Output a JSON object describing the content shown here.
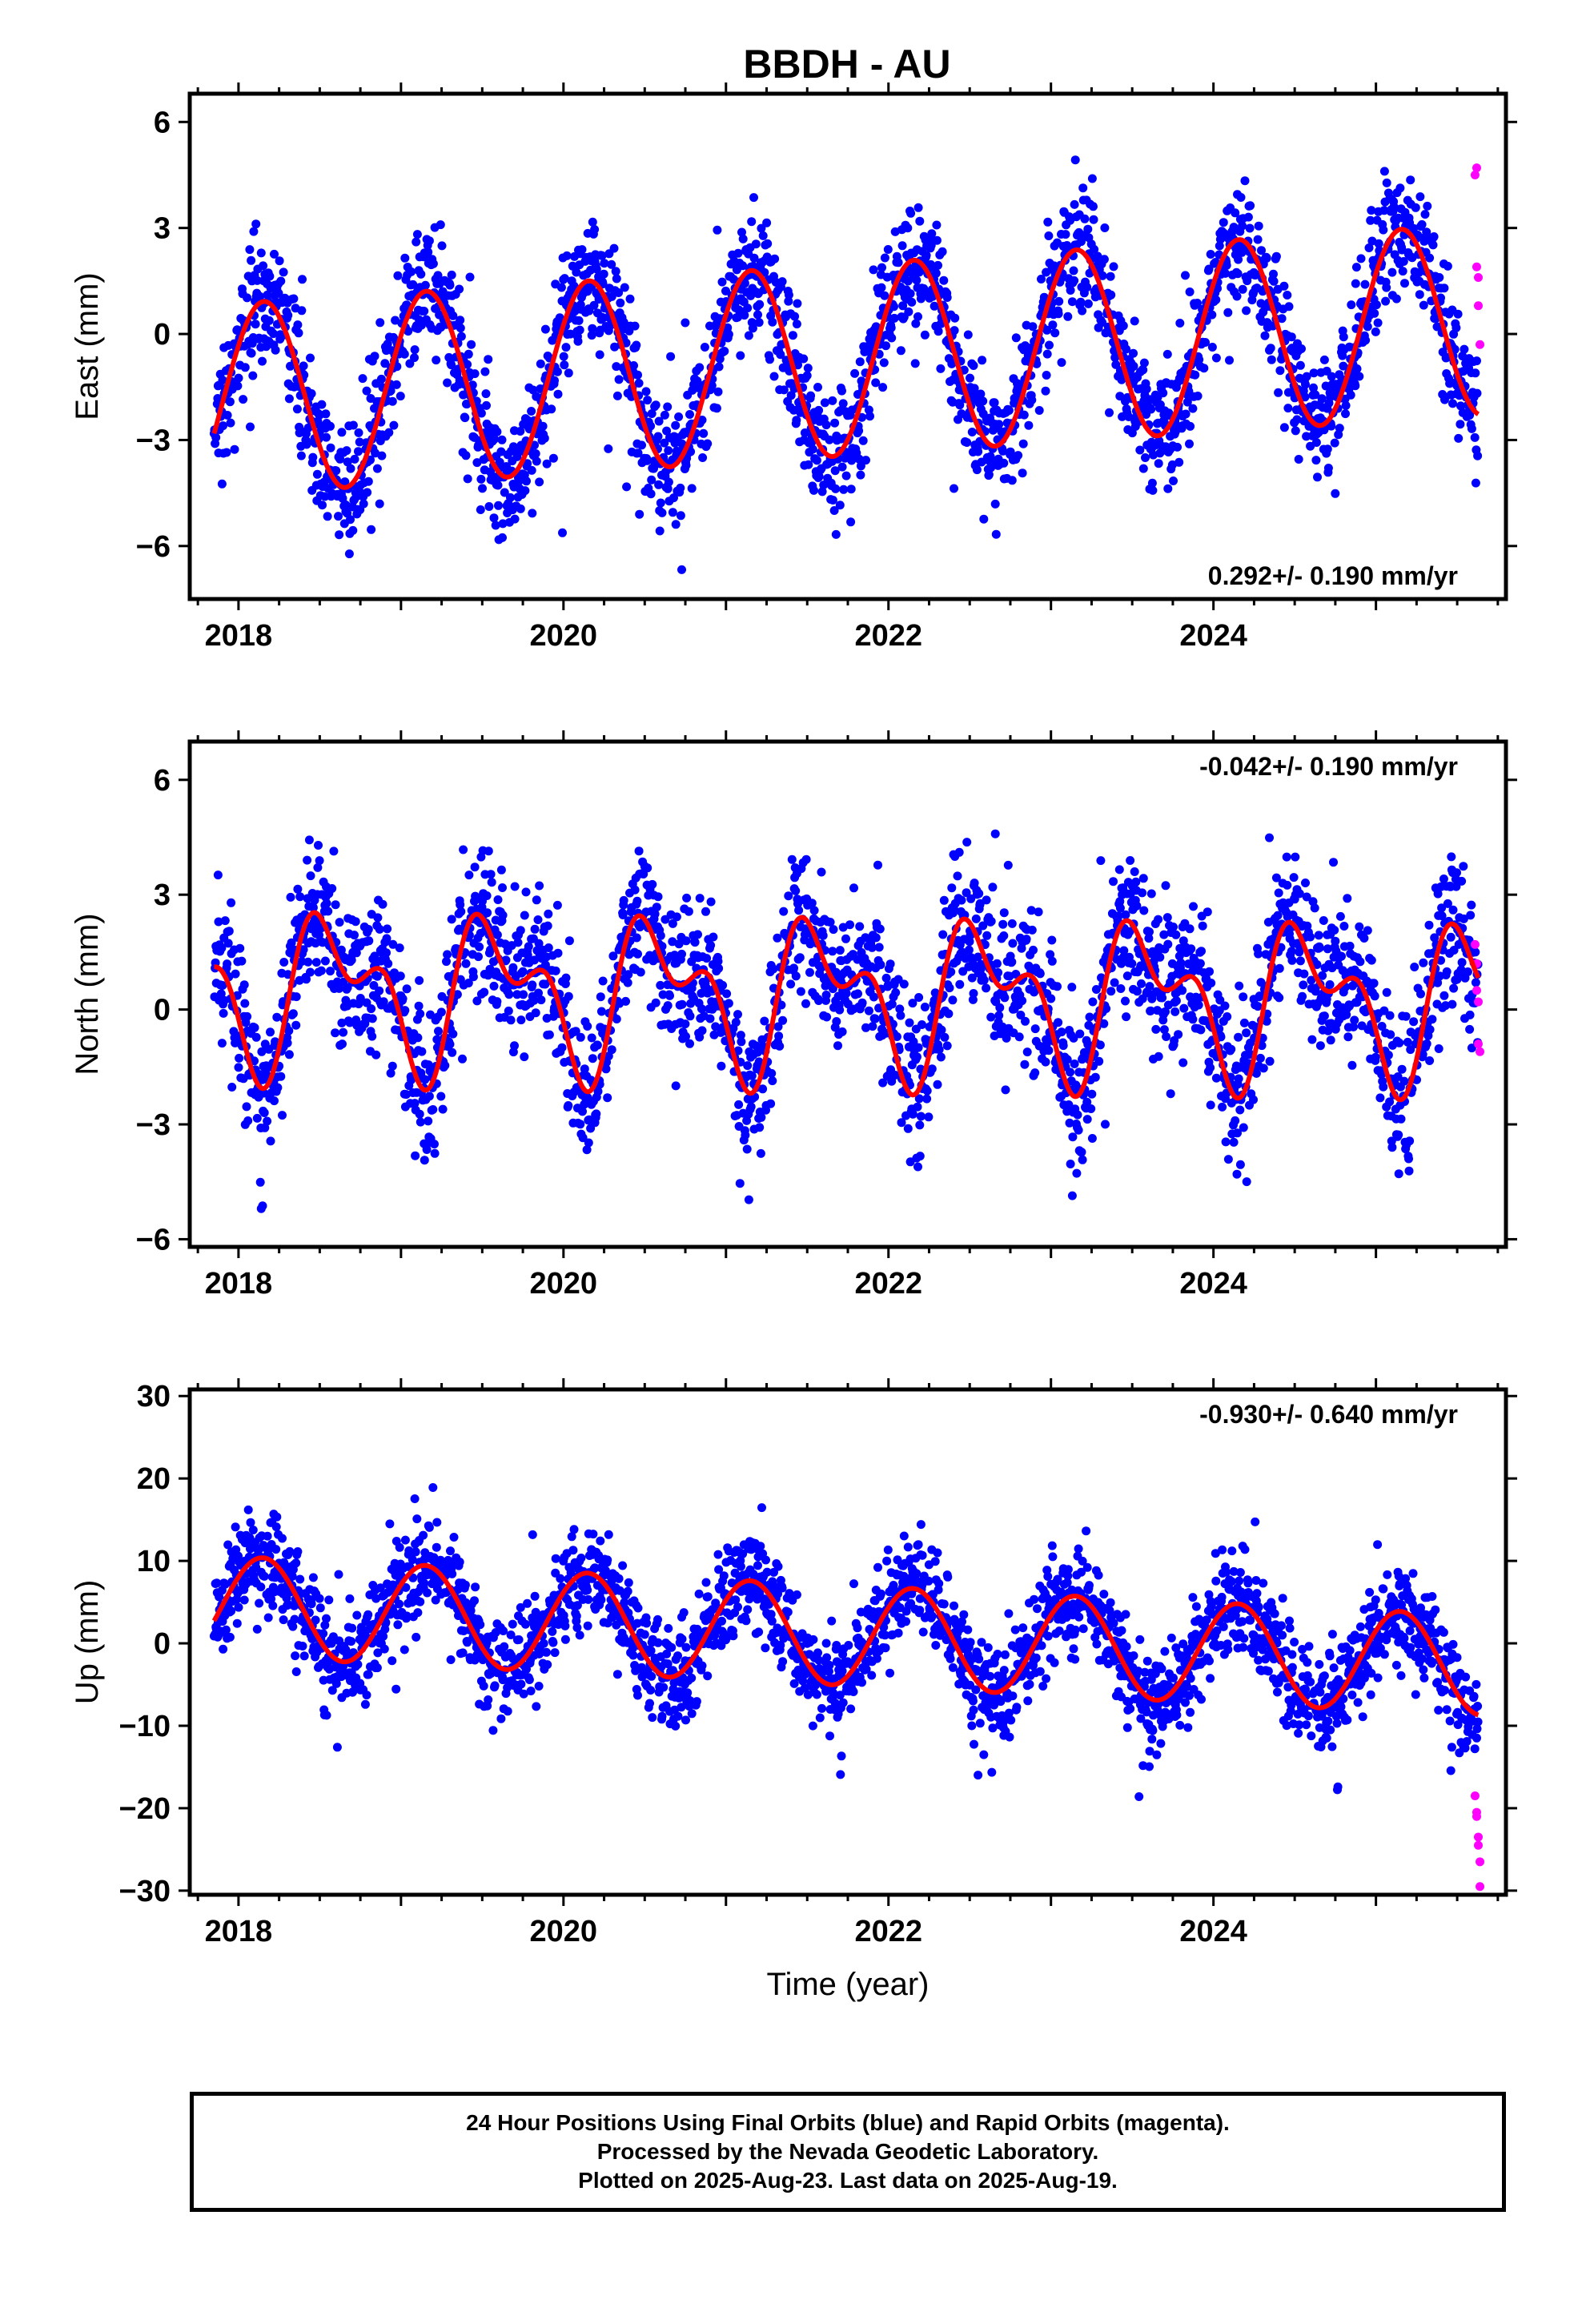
{
  "title": "BBDH - AU",
  "footer": {
    "line1": "24 Hour Positions Using Final Orbits (blue) and Rapid Orbits (magenta).",
    "line2": "Processed by the Nevada Geodetic Laboratory.",
    "line3": "Plotted on 2025-Aug-23. Last data on 2025-Aug-19."
  },
  "colors": {
    "final": "#0000ff",
    "rapid": "#ff00ff",
    "model": "#ff0000",
    "frame": "#000000"
  },
  "chart_data": [
    {
      "type": "scatter",
      "ylabel": "East (mm)",
      "xlabel": "",
      "rate_label": "0.292+/- 0.190 mm/yr",
      "rate_position": "bottom-right",
      "xlim": [
        2017.7,
        2025.8
      ],
      "ylim": [
        -7.5,
        6.8
      ],
      "xticks": [
        2018,
        2020,
        2022,
        2024
      ],
      "yticks": [
        -6,
        -3,
        0,
        3,
        6
      ],
      "ytick_labels": [
        "−6",
        "−3",
        "0",
        "3",
        "6"
      ],
      "data_start": 2017.85,
      "data_end": 2025.63,
      "model": {
        "offset": -0.75,
        "trend": 0.292,
        "ref_year": 2021.7,
        "annual_cos": 1.5,
        "annual_sin": 2.25,
        "semiannual_cos": 0.0,
        "semiannual_sin": 0.0
      },
      "scatter_sigma": 0.9,
      "rapid_points": [
        {
          "x": 2025.61,
          "y": 4.5
        },
        {
          "x": 2025.62,
          "y": 4.7
        },
        {
          "x": 2025.62,
          "y": 1.9
        },
        {
          "x": 2025.63,
          "y": 1.6
        },
        {
          "x": 2025.63,
          "y": 0.8
        },
        {
          "x": 2025.64,
          "y": -0.3
        }
      ]
    },
    {
      "type": "scatter",
      "ylabel": "North (mm)",
      "xlabel": "",
      "rate_label": "-0.042+/- 0.190 mm/yr",
      "rate_position": "top-right",
      "xlim": [
        2017.7,
        2025.8
      ],
      "ylim": [
        -6.2,
        7.0
      ],
      "xticks": [
        2018,
        2020,
        2022,
        2024
      ],
      "yticks": [
        -6,
        -3,
        0,
        3,
        6
      ],
      "ytick_labels": [
        "−6",
        "−3",
        "0",
        "3",
        "6"
      ],
      "data_start": 2017.85,
      "data_end": 2025.63,
      "model": {
        "offset": 0.35,
        "trend": -0.042,
        "ref_year": 2021.7,
        "annual_cos": -1.35,
        "annual_sin": -0.9,
        "semiannual_cos": 0.6,
        "semiannual_sin": -0.9
      },
      "scatter_sigma": 0.95,
      "rapid_points": [
        {
          "x": 2025.61,
          "y": 1.7
        },
        {
          "x": 2025.62,
          "y": 1.2
        },
        {
          "x": 2025.62,
          "y": 0.5
        },
        {
          "x": 2025.63,
          "y": 0.2
        },
        {
          "x": 2025.63,
          "y": -0.9
        },
        {
          "x": 2025.64,
          "y": -1.1
        }
      ]
    },
    {
      "type": "scatter",
      "ylabel": "Up (mm)",
      "xlabel": "Time (year)",
      "rate_label": "-0.930+/- 0.640 mm/yr",
      "rate_position": "top-right",
      "xlim": [
        2017.7,
        2025.8
      ],
      "ylim": [
        -30.5,
        30.8
      ],
      "xticks": [
        2018,
        2020,
        2022,
        2024
      ],
      "yticks": [
        -30,
        -20,
        -10,
        0,
        10,
        20,
        30
      ],
      "ytick_labels": [
        "−30",
        "−20",
        "−10",
        "0",
        "10",
        "20",
        "30"
      ],
      "data_start": 2017.85,
      "data_end": 2025.63,
      "model": {
        "offset": 1.0,
        "trend": -0.93,
        "ref_year": 2021.7,
        "annual_cos": 3.6,
        "annual_sin": 4.9,
        "semiannual_cos": 0.0,
        "semiannual_sin": 0.0
      },
      "scatter_sigma": 3.0,
      "rapid_points": [
        {
          "x": 2025.61,
          "y": -18.5
        },
        {
          "x": 2025.62,
          "y": -20.5
        },
        {
          "x": 2025.62,
          "y": -21.0
        },
        {
          "x": 2025.63,
          "y": -23.5
        },
        {
          "x": 2025.63,
          "y": -24.5
        },
        {
          "x": 2025.64,
          "y": -26.5
        },
        {
          "x": 2025.64,
          "y": -29.5
        }
      ]
    }
  ]
}
